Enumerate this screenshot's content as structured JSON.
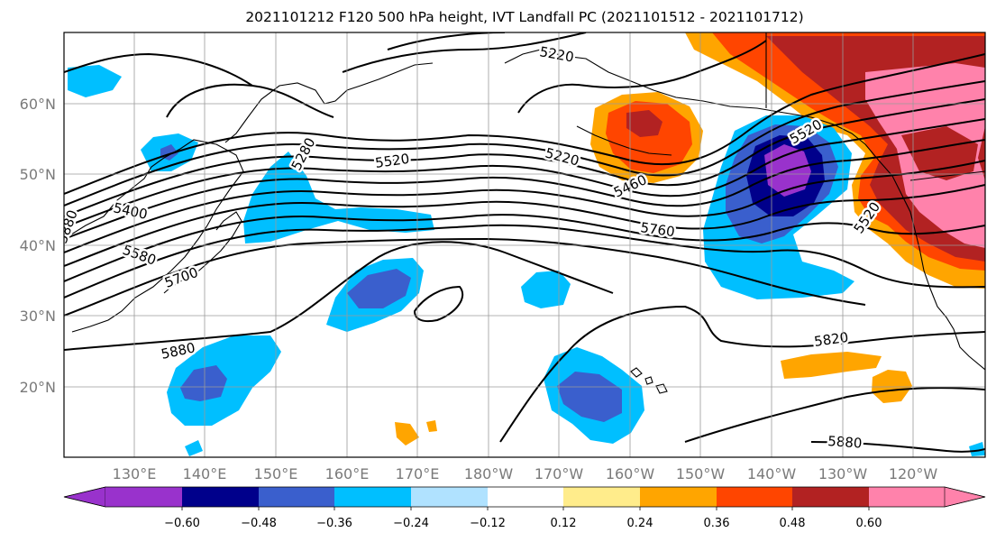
{
  "title": "2021101212 F120 500 hPa height, IVT Landfall PC (2021101512 - 2021101712)",
  "lat_labels": [
    "60°N",
    "50°N",
    "40°N",
    "30°N",
    "20°N"
  ],
  "lon_labels": [
    "130°E",
    "140°E",
    "150°E",
    "160°E",
    "170°E",
    "180°W",
    "170°W",
    "160°W",
    "150°W",
    "140°W",
    "130°W",
    "120°W"
  ],
  "contour_labels": [
    "5220",
    "5280",
    "5520",
    "5220",
    "5460",
    "5400",
    "5580",
    "5700",
    "5760",
    "5880",
    "5820",
    "5880",
    "5520",
    "5520",
    "5880"
  ],
  "colorbar": {
    "tick_labels": [
      "−0.60",
      "−0.48",
      "−0.36",
      "−0.24",
      "−0.12",
      "0.12",
      "0.24",
      "0.36",
      "0.48",
      "0.60"
    ],
    "colors": [
      "#9932CC",
      "#00008B",
      "#3A5FCD",
      "#00BFFF",
      "#B0E2FF",
      "#FFFFFF",
      "#FFEC8B",
      "#FFA500",
      "#FF4500",
      "#B22222",
      "#FF82AB"
    ]
  },
  "palette": {
    "purple": "#9932CC",
    "navy": "#00008B",
    "royal_blue": "#3A5FCD",
    "deep_sky": "#00BFFF",
    "light_blue": "#B0E2FF",
    "light_yellow": "#FFEC8B",
    "orange": "#FFA500",
    "orange_red": "#FF4500",
    "firebrick": "#B22222",
    "pink": "#FF82AB"
  }
}
